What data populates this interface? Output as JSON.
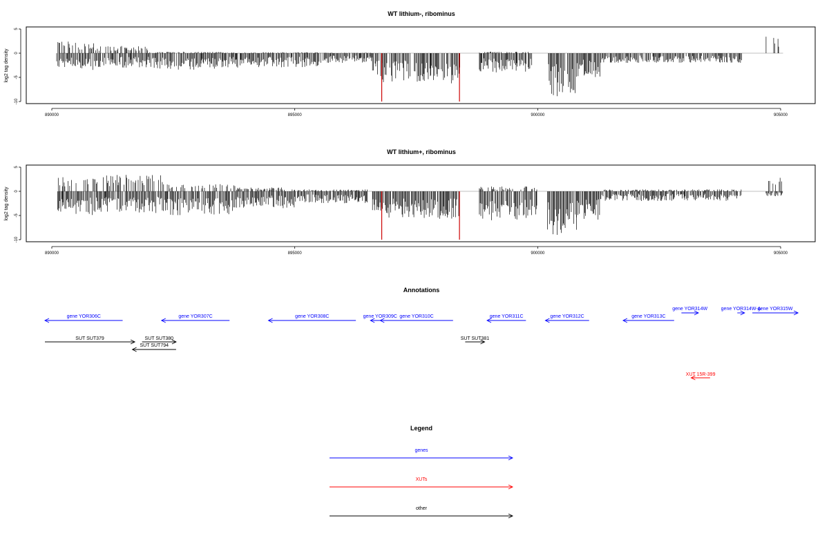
{
  "chart_data": [
    {
      "type": "bar",
      "title": "WT lithium-, ribominus",
      "ylabel": "log2 tag density",
      "xlim": [
        890000,
        905000
      ],
      "ylim": [
        -10,
        5
      ],
      "xticks": [
        "890000",
        "895000",
        "900000",
        "905000"
      ],
      "yticks": [
        "5",
        "0",
        "-5",
        "-10"
      ],
      "profile": [
        {
          "from": 890100,
          "to": 890900,
          "pos": 2.5,
          "neg": -3.5
        },
        {
          "from": 890900,
          "to": 892000,
          "pos": 1.5,
          "neg": -3
        },
        {
          "from": 892000,
          "to": 893500,
          "pos": 0.3,
          "neg": -3.5
        },
        {
          "from": 893500,
          "to": 895500,
          "pos": 0.2,
          "neg": -3
        },
        {
          "from": 895500,
          "to": 896600,
          "pos": 0.1,
          "neg": -2
        },
        {
          "from": 896600,
          "to": 897800,
          "pos": 0,
          "neg": -6
        },
        {
          "from": 897800,
          "to": 898400,
          "pos": 0,
          "neg": -7
        },
        {
          "from": 898800,
          "to": 899900,
          "pos": 0.3,
          "neg": -4
        },
        {
          "from": 900200,
          "to": 900800,
          "pos": 0,
          "neg": -9
        },
        {
          "from": 900800,
          "to": 901300,
          "pos": 0,
          "neg": -5
        },
        {
          "from": 901300,
          "to": 904200,
          "pos": 0,
          "neg": -2
        },
        {
          "from": 904700,
          "to": 905050,
          "pos": 3.5,
          "neg": 0
        }
      ],
      "red_marks": [
        {
          "x": 896790,
          "y": -10
        },
        {
          "x": 898390,
          "y": -10
        }
      ]
    },
    {
      "type": "bar",
      "title": "WT lithium+, ribominus",
      "ylabel": "log2 tag density",
      "xlim": [
        890000,
        905000
      ],
      "ylim": [
        -10,
        5
      ],
      "xticks": [
        "890000",
        "895000",
        "900000",
        "905000"
      ],
      "yticks": [
        "5",
        "0",
        "-5",
        "-10"
      ],
      "profile": [
        {
          "from": 890100,
          "to": 891000,
          "pos": 3,
          "neg": -5
        },
        {
          "from": 891000,
          "to": 892300,
          "pos": 3.5,
          "neg": -4.5
        },
        {
          "from": 892300,
          "to": 893800,
          "pos": 1.5,
          "neg": -5
        },
        {
          "from": 893800,
          "to": 895000,
          "pos": 0.8,
          "neg": -3.5
        },
        {
          "from": 895000,
          "to": 896500,
          "pos": 0.4,
          "neg": -2.5
        },
        {
          "from": 896600,
          "to": 897900,
          "pos": 0,
          "neg": -5.5
        },
        {
          "from": 897900,
          "to": 898400,
          "pos": 0,
          "neg": -6
        },
        {
          "from": 888800,
          "to": 888800,
          "pos": 0,
          "neg": 0
        },
        {
          "from": 898800,
          "to": 900000,
          "pos": 1,
          "neg": -6
        },
        {
          "from": 900200,
          "to": 900800,
          "pos": 0,
          "neg": -9
        },
        {
          "from": 900800,
          "to": 901300,
          "pos": 0,
          "neg": -6
        },
        {
          "from": 901300,
          "to": 904200,
          "pos": 0.4,
          "neg": -2
        },
        {
          "from": 904700,
          "to": 905050,
          "pos": 4,
          "neg": -1
        }
      ],
      "red_marks": [
        {
          "x": 896790,
          "y": -10
        },
        {
          "x": 898390,
          "y": -10
        }
      ]
    }
  ],
  "annotations": {
    "title": "Annotations",
    "features": [
      {
        "label": "gene YOR306C",
        "start": 890000,
        "end": 891600,
        "dir": "left",
        "kind": "gene",
        "row": 0
      },
      {
        "label": "gene YOR307C",
        "start": 892400,
        "end": 893800,
        "dir": "left",
        "kind": "gene",
        "row": 0
      },
      {
        "label": "gene YOR308C",
        "start": 894600,
        "end": 896400,
        "dir": "left",
        "kind": "gene",
        "row": 0
      },
      {
        "label": "gene YOR309C",
        "start": 896700,
        "end": 897100,
        "dir": "left",
        "kind": "gene",
        "row": 0
      },
      {
        "label": "gene YOR310C",
        "start": 896900,
        "end": 898400,
        "dir": "left",
        "kind": "gene",
        "row": 0
      },
      {
        "label": "gene YOR311C",
        "start": 899100,
        "end": 899900,
        "dir": "left",
        "kind": "gene",
        "row": 0
      },
      {
        "label": "gene YOR312C",
        "start": 900300,
        "end": 901200,
        "dir": "left",
        "kind": "gene",
        "row": 0
      },
      {
        "label": "gene YOR313C",
        "start": 901900,
        "end": 902950,
        "dir": "left",
        "kind": "gene",
        "row": 0
      },
      {
        "label": "gene YOR314W",
        "start": 903100,
        "end": 903450,
        "dir": "right",
        "kind": "gene",
        "row": 1
      },
      {
        "label": "gene YOR314W-A",
        "start": 904250,
        "end": 904400,
        "dir": "right",
        "kind": "gene",
        "row": 1
      },
      {
        "label": "gene YOR315W",
        "start": 904560,
        "end": 905500,
        "dir": "right",
        "kind": "gene",
        "row": 1
      },
      {
        "label": "SUT SUT379",
        "start": 890000,
        "end": 891850,
        "dir": "right",
        "kind": "other",
        "row": 2
      },
      {
        "label": "SUT SUT380",
        "start": 892000,
        "end": 892700,
        "dir": "right",
        "kind": "other",
        "row": 2
      },
      {
        "label": "SUT SUT794",
        "start": 891800,
        "end": 892700,
        "dir": "left",
        "kind": "other",
        "row": 3
      },
      {
        "label": "SUT SUT381",
        "start": 898650,
        "end": 899050,
        "dir": "right",
        "kind": "other",
        "row": 2
      },
      {
        "label": "XUT 15R-399",
        "start": 903300,
        "end": 903690,
        "dir": "left",
        "kind": "xut",
        "row": 4
      }
    ]
  },
  "legend": {
    "title": "Legend",
    "items": [
      {
        "label": "genes",
        "color": "#0000ff"
      },
      {
        "label": "XUTs",
        "color": "#ff0000"
      },
      {
        "label": "other",
        "color": "#000000"
      }
    ]
  },
  "colors": {
    "gene": "#0000ff",
    "xut": "#ff0000",
    "other": "#000000",
    "bars": "#000000",
    "highlight": "#cc0000",
    "baseline": "#aaaaaa"
  }
}
